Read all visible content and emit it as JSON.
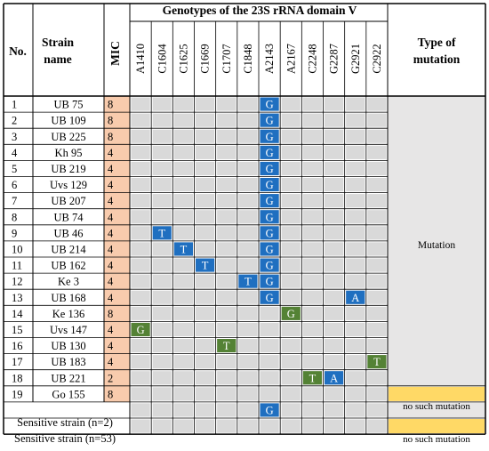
{
  "header": {
    "no": "No.",
    "strain_line1": "Strain",
    "strain_line2": "name",
    "mic": "MIC",
    "genotypes_title": "Genotypes of the 23S rRNA domain V",
    "type_line1": "Type of",
    "type_line2": "mutation"
  },
  "positions": [
    "A1410",
    "C1604",
    "C1625",
    "C1669",
    "C1707",
    "C1848",
    "A2143",
    "A2167",
    "C2248",
    "G2287",
    "G2921",
    "C2922"
  ],
  "rows": [
    {
      "no": "1",
      "strain": "UB 75",
      "mic": "8",
      "muts": [
        {
          "pos": 6,
          "base": "G",
          "color": "blue"
        }
      ]
    },
    {
      "no": "2",
      "strain": "UB 109",
      "mic": "8",
      "muts": [
        {
          "pos": 6,
          "base": "G",
          "color": "blue"
        }
      ]
    },
    {
      "no": "3",
      "strain": "UB 225",
      "mic": "8",
      "muts": [
        {
          "pos": 6,
          "base": "G",
          "color": "blue"
        }
      ]
    },
    {
      "no": "4",
      "strain": "Kh 95",
      "mic": "4",
      "muts": [
        {
          "pos": 6,
          "base": "G",
          "color": "blue"
        }
      ]
    },
    {
      "no": "5",
      "strain": "UB 219",
      "mic": "4",
      "muts": [
        {
          "pos": 6,
          "base": "G",
          "color": "blue"
        }
      ]
    },
    {
      "no": "6",
      "strain": "Uvs 129",
      "mic": "4",
      "muts": [
        {
          "pos": 6,
          "base": "G",
          "color": "blue"
        }
      ]
    },
    {
      "no": "7",
      "strain": "UB 207",
      "mic": "4",
      "muts": [
        {
          "pos": 6,
          "base": "G",
          "color": "blue"
        }
      ]
    },
    {
      "no": "8",
      "strain": "UB 74",
      "mic": "4",
      "muts": [
        {
          "pos": 6,
          "base": "G",
          "color": "blue"
        }
      ]
    },
    {
      "no": "9",
      "strain": "UB 46",
      "mic": "4",
      "muts": [
        {
          "pos": 1,
          "base": "T",
          "color": "blue"
        },
        {
          "pos": 6,
          "base": "G",
          "color": "blue"
        }
      ]
    },
    {
      "no": "10",
      "strain": "UB 214",
      "mic": "4",
      "muts": [
        {
          "pos": 2,
          "base": "T",
          "color": "blue"
        },
        {
          "pos": 6,
          "base": "G",
          "color": "blue"
        }
      ]
    },
    {
      "no": "11",
      "strain": "UB 162",
      "mic": "4",
      "muts": [
        {
          "pos": 3,
          "base": "T",
          "color": "blue"
        },
        {
          "pos": 6,
          "base": "G",
          "color": "blue"
        }
      ]
    },
    {
      "no": "12",
      "strain": "Ke 3",
      "mic": "4",
      "muts": [
        {
          "pos": 5,
          "base": "T",
          "color": "blue"
        },
        {
          "pos": 6,
          "base": "G",
          "color": "blue"
        }
      ]
    },
    {
      "no": "13",
      "strain": "UB 168",
      "mic": "4",
      "muts": [
        {
          "pos": 6,
          "base": "G",
          "color": "blue"
        },
        {
          "pos": 10,
          "base": "A",
          "color": "blue"
        }
      ]
    },
    {
      "no": "14",
      "strain": "Ke 136",
      "mic": "8",
      "muts": [
        {
          "pos": 7,
          "base": "G",
          "color": "green"
        }
      ]
    },
    {
      "no": "15",
      "strain": "Uvs 147",
      "mic": "4",
      "muts": [
        {
          "pos": 0,
          "base": "G",
          "color": "green"
        }
      ]
    },
    {
      "no": "16",
      "strain": "UB 130",
      "mic": "4",
      "muts": [
        {
          "pos": 4,
          "base": "T",
          "color": "green"
        }
      ]
    },
    {
      "no": "17",
      "strain": "UB 183",
      "mic": "4",
      "muts": [
        {
          "pos": 11,
          "base": "T",
          "color": "green"
        }
      ]
    },
    {
      "no": "18",
      "strain": "UB 221",
      "mic": "2",
      "muts": [
        {
          "pos": 8,
          "base": "T",
          "color": "green"
        },
        {
          "pos": 9,
          "base": "A",
          "color": "blue"
        }
      ]
    },
    {
      "no": "19",
      "strain": "Go 155",
      "mic": "8",
      "muts": []
    }
  ],
  "sensitive_rows": [
    {
      "label": "Sensitive strain (n=2)",
      "muts": [
        {
          "pos": 6,
          "base": "G",
          "color": "blue"
        }
      ],
      "type": ""
    },
    {
      "label": "Sensitive strain (n=53)",
      "muts": [],
      "type": "no such mutation"
    }
  ],
  "type_labels": {
    "mutation": "Mutation",
    "go155": "no such mutation"
  },
  "colors": {
    "mic_fill": "#f8cbad",
    "cell_gray": "#d9d9d9",
    "mut_blue": "#1f6fc0",
    "mut_green": "#548235",
    "type_gray": "#e7e6e6",
    "type_yellow": "#ffd966",
    "border": "#000000"
  }
}
